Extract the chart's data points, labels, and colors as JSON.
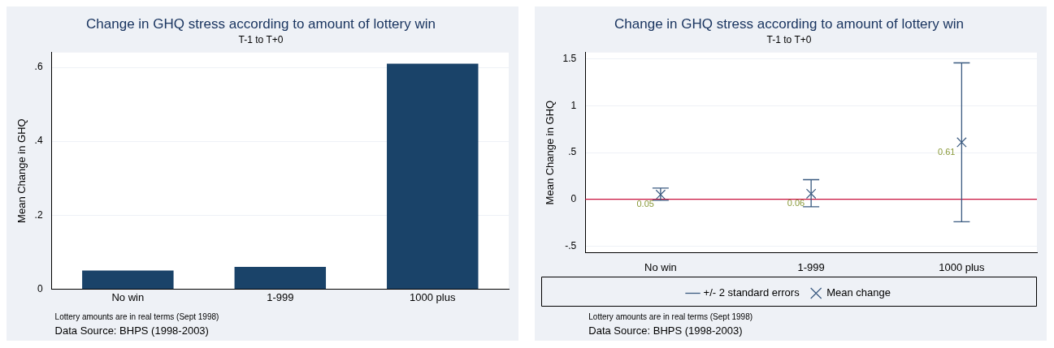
{
  "chart_data": [
    {
      "type": "bar",
      "title": "Change in GHQ stress according to amount of lottery win",
      "subtitle": "T-1 to T+0",
      "ylabel": "Mean Change in GHQ",
      "categories": [
        "No win",
        "1-999",
        "1000 plus"
      ],
      "values": [
        0.05,
        0.06,
        0.61
      ],
      "color": "#1a4369",
      "ylim": [
        0,
        0.64
      ],
      "yticks": [
        0,
        {
          "value": 0.2,
          "label": ".2"
        },
        {
          "value": 0.4,
          "label": ".4"
        },
        {
          "value": 0.6,
          "label": ".6"
        }
      ],
      "grid": "y",
      "legend": false,
      "annotations": [
        "Lottery amounts are in real terms (Sept 1998)",
        "Data Source: BHPS (1998-2003)"
      ]
    },
    {
      "type": "scatter",
      "title": "Change in GHQ stress according to amount of lottery win",
      "subtitle": "T-1 to T+0",
      "ylabel": "Mean Change in GHQ",
      "categories": [
        "No win",
        "1-999",
        "1000 plus"
      ],
      "series": [
        {
          "name": "Mean change",
          "color": "#3a5a80",
          "values": [
            0.05,
            0.06,
            0.61
          ],
          "errors": [
            [
              -0.01,
              0.12
            ],
            [
              -0.08,
              0.21
            ],
            [
              -0.24,
              1.46
            ]
          ]
        }
      ],
      "marker": "cross",
      "data_labels": true,
      "ylim": [
        -0.57,
        1.57
      ],
      "yticks": [
        {
          "value": -0.5,
          "label": "-.5"
        },
        0,
        {
          "value": 0.5,
          "label": ".5"
        },
        1,
        1.5
      ],
      "grid": "y",
      "legend": "bottom",
      "ref_lines": [
        {
          "axis": "y",
          "value": 0,
          "color": "#c8103c"
        }
      ],
      "annotations": [
        "+/- 2 standard errors",
        "Lottery amounts are in real terms (Sept 1998)",
        "Data Source: BHPS (1998-2003)"
      ]
    }
  ]
}
